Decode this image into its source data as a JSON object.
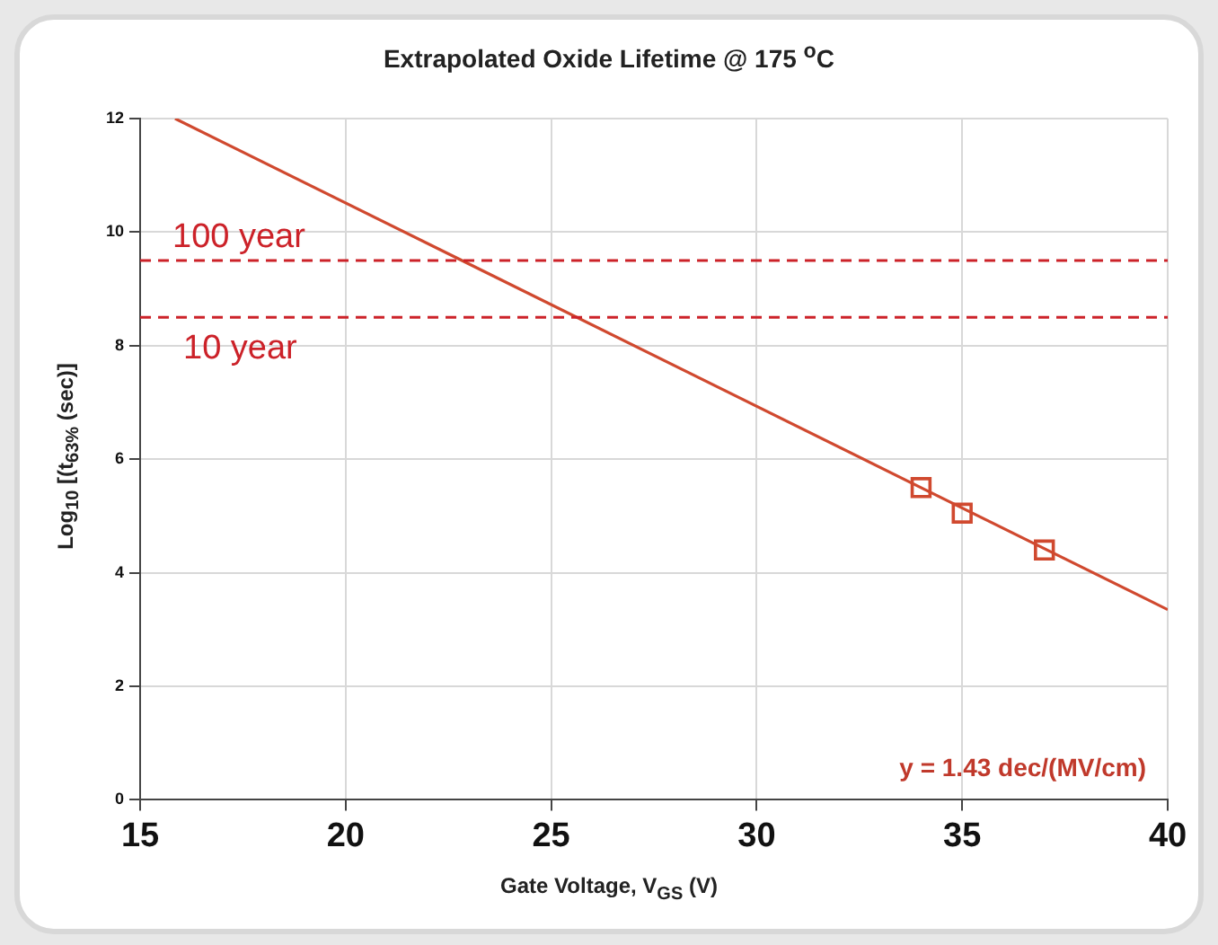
{
  "chart_data": {
    "type": "scatter",
    "title": "Extrapolated Oxide Lifetime @ 175 $^{o}$C",
    "xlabel": "Gate Voltage, V$_{GS}$ (V)",
    "ylabel": "Log$_{10}$ [(t$_{63%}$ (sec)]",
    "xlim": [
      15,
      40
    ],
    "xticks": [
      15,
      20,
      25,
      30,
      35,
      40
    ],
    "ylim": [
      0,
      12
    ],
    "yticks": [
      0,
      2,
      4,
      6,
      8,
      10,
      12
    ],
    "grid": true,
    "legend": false,
    "series": [
      {
        "color": "#d0492f",
        "marker": "square",
        "x": [
          34,
          35,
          37
        ],
        "values": [
          5.5,
          5.05,
          4.4
        ]
      },
      {
        "type": "line",
        "color": "#d0492f",
        "marker": "none",
        "line_style": "solid",
        "x": [
          15.85,
          40
        ],
        "values": [
          12,
          3.35
        ]
      }
    ],
    "ref_lines": [
      {
        "axis": "y",
        "value": 9.5,
        "label": "100 year",
        "color": "#cc2229",
        "line_style": "dashed"
      },
      {
        "axis": "y",
        "value": 8.5,
        "label": "10 year",
        "color": "#cc2229",
        "line_style": "dashed"
      }
    ],
    "annotations": [
      "y = 1.43 dec/(MV/cm)"
    ]
  }
}
